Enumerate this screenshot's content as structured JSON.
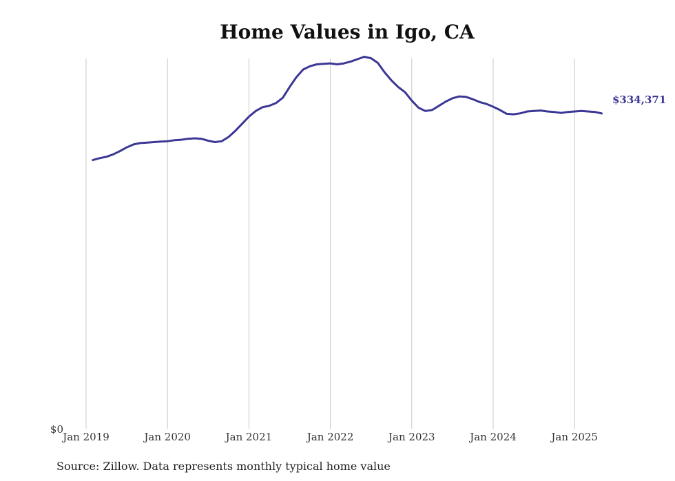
{
  "chart_data": {
    "type": "line",
    "title": "Home Values in Igo, CA",
    "source": "Source: Zillow. Data represents monthly typical home value",
    "xlabel": "",
    "ylabel": "",
    "y_tick_label": "$0",
    "x_tick_labels": [
      "Jan 2019",
      "Jan 2020",
      "Jan 2021",
      "Jan 2022",
      "Jan 2023",
      "Jan 2024",
      "Jan 2025"
    ],
    "x_start": "2019-02",
    "x_end": "2025-05",
    "ylim": [
      0,
      400000
    ],
    "grid": "vertical",
    "line_color": "#3b3794",
    "end_label": "$334,371",
    "series": [
      {
        "values": [
          285000,
          287000,
          288500,
          291000,
          294500,
          298500,
          301500,
          303000,
          303500,
          304000,
          304500,
          305000,
          306000,
          306500,
          307500,
          308000,
          307500,
          305500,
          304000,
          305000,
          309500,
          316000,
          323500,
          331000,
          337000,
          341000,
          342500,
          345500,
          351000,
          362500,
          373000,
          381000,
          384500,
          386500,
          387000,
          387500,
          386500,
          387500,
          389500,
          392000,
          394500,
          393000,
          388000,
          378000,
          369500,
          362500,
          357000,
          348000,
          340500,
          337000,
          338000,
          342500,
          347000,
          350500,
          352500,
          352000,
          349500,
          346500,
          344500,
          341500,
          338000,
          334000,
          333500,
          334500,
          336500,
          337000,
          337500,
          336500,
          336000,
          335000,
          336000,
          336500,
          337000,
          336500,
          336000,
          334371
        ]
      }
    ]
  }
}
